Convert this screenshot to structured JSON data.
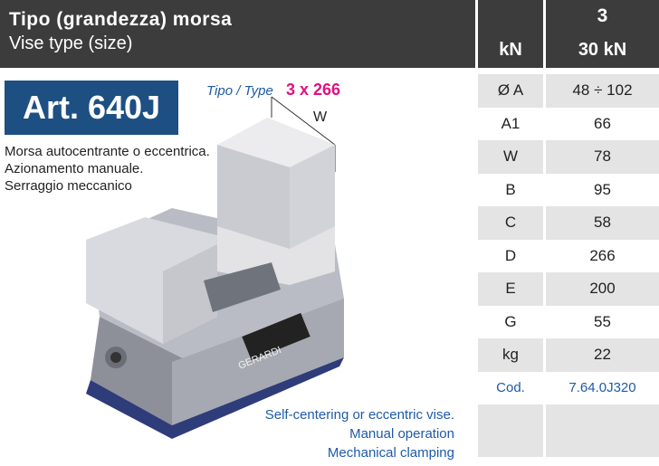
{
  "header": {
    "title": "Tipo (grandezza) morsa",
    "subtitle": "Vise type (size)",
    "unit": "kN",
    "size": "3",
    "force": "30 kN"
  },
  "article": "Art. 640J",
  "type": {
    "label": "Tipo / Type",
    "value": "3 x 266"
  },
  "dimension_label": "W",
  "description_it": [
    "Morsa autocentrante o eccentrica.",
    "Azionamento manuale.",
    "Serraggio meccanico"
  ],
  "description_en": [
    "Self-centering or eccentric vise.",
    "Manual operation",
    "Mechanical clamping"
  ],
  "table": {
    "rows": [
      [
        "Ø A",
        "48 ÷ 102"
      ],
      [
        "A1",
        "66"
      ],
      [
        "W",
        "78"
      ],
      [
        "B",
        "95"
      ],
      [
        "C",
        "58"
      ],
      [
        "D",
        "266"
      ],
      [
        "E",
        "200"
      ],
      [
        "G",
        "55"
      ],
      [
        "kg",
        "22"
      ]
    ],
    "code": [
      "Cod.",
      "7.64.0J320"
    ]
  },
  "brand": "GERARDI"
}
